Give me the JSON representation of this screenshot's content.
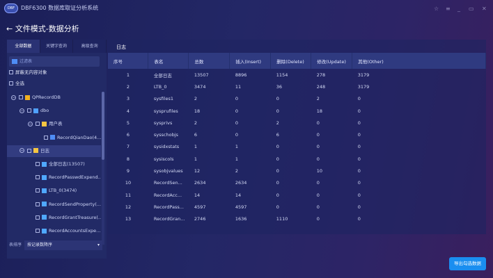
{
  "app": {
    "logo": "DBF",
    "title": "DBF6300 数据库取证分析系统"
  },
  "window_controls": {
    "skin": "☆",
    "menu": "≡",
    "minimize": "_",
    "maximize": "▭",
    "close": "✕"
  },
  "page": {
    "back": "←",
    "title": "文件模式-数据分析"
  },
  "left": {
    "tabs": [
      "全部数据",
      "关键字查询",
      "高级查询"
    ],
    "filter_placeholder": "过滤表",
    "hide_empty": "屏蔽无内容对象",
    "select_all": "全选",
    "tree": [
      {
        "label": "QPRecordDB",
        "level": 0,
        "icon": "database-icon"
      },
      {
        "label": "dbo",
        "level": 1,
        "icon": "user-icon"
      },
      {
        "label": "用户表",
        "level": 2,
        "icon": "folder-icon"
      },
      {
        "label": "RecordQianDao(4...",
        "level": 3,
        "icon": "table-icon"
      },
      {
        "label": "日志",
        "level": 1,
        "icon": "folder-icon",
        "selected": true
      },
      {
        "label": "全部日志(13507)",
        "level": 2,
        "icon": "log-icon"
      },
      {
        "label": "RecordPasswdExpend...",
        "level": 2,
        "icon": "log-icon"
      },
      {
        "label": "LTB_0(3474)",
        "level": 2,
        "icon": "log-icon"
      },
      {
        "label": "RecordSendProperty(...",
        "level": 2,
        "icon": "log-icon"
      },
      {
        "label": "RecordGrantTreasure(...",
        "level": 2,
        "icon": "log-icon"
      },
      {
        "label": "RecordAccountsExpe...",
        "level": 2,
        "icon": "log-icon"
      }
    ],
    "sort_label": "表排序",
    "sort_value": "按记录数降序"
  },
  "right": {
    "tab": "日志",
    "columns": [
      "序号",
      "表名",
      "总数",
      "插入(Insert)",
      "删除(Delete)",
      "修改(Update)",
      "其他(Other)"
    ],
    "rows": [
      [
        "1",
        "全部日志",
        "13507",
        "8896",
        "1154",
        "278",
        "3179"
      ],
      [
        "2",
        "LTB_0",
        "3474",
        "11",
        "36",
        "248",
        "3179"
      ],
      [
        "3",
        "sysfiles1",
        "2",
        "0",
        "0",
        "2",
        "0"
      ],
      [
        "4",
        "sysprufiles",
        "18",
        "0",
        "0",
        "18",
        "0"
      ],
      [
        "5",
        "sysprivs",
        "2",
        "0",
        "2",
        "0",
        "0"
      ],
      [
        "6",
        "sysschobjs",
        "6",
        "0",
        "6",
        "0",
        "0"
      ],
      [
        "7",
        "sysidxstats",
        "1",
        "1",
        "0",
        "0",
        "0"
      ],
      [
        "8",
        "sysiscols",
        "1",
        "1",
        "0",
        "0",
        "0"
      ],
      [
        "9",
        "sysobjvalues",
        "12",
        "2",
        "0",
        "10",
        "0"
      ],
      [
        "10",
        "RecordSen...",
        "2634",
        "2634",
        "0",
        "0",
        "0"
      ],
      [
        "11",
        "RecordAcc...",
        "14",
        "14",
        "0",
        "0",
        "0"
      ],
      [
        "12",
        "RecordPass...",
        "4597",
        "4597",
        "0",
        "0",
        "0"
      ],
      [
        "13",
        "RecordGran...",
        "2746",
        "1636",
        "1110",
        "0",
        "0"
      ]
    ]
  },
  "export_button": "导出勾选数据"
}
